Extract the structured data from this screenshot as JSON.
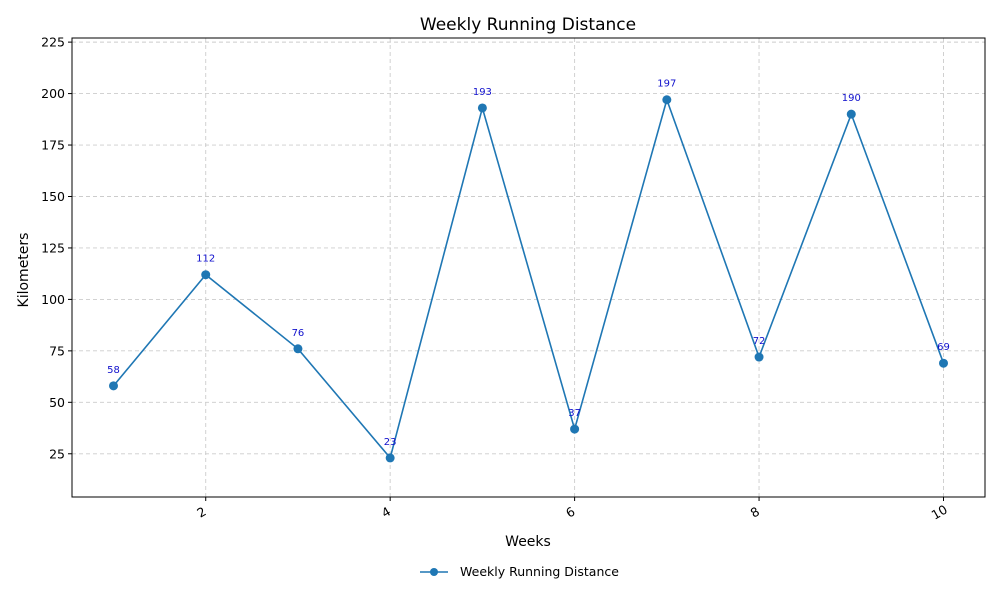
{
  "chart_data": {
    "type": "line",
    "title": "Weekly Running Distance",
    "xlabel": "Weeks",
    "ylabel": "Kilometers",
    "x": [
      1,
      2,
      3,
      4,
      5,
      6,
      7,
      8,
      9,
      10
    ],
    "series": [
      {
        "name": "Weekly Running Distance",
        "color": "#1f77b4",
        "values": [
          58,
          112,
          76,
          23,
          193,
          37,
          197,
          72,
          190,
          69
        ]
      }
    ],
    "data_labels": [
      "58",
      "112",
      "76",
      "23",
      "193",
      "37",
      "197",
      "72",
      "190",
      "69"
    ],
    "data_label_color": "#1010cc",
    "xlim": [
      0.55,
      10.45
    ],
    "ylim": [
      4,
      227
    ],
    "xticks": [
      2,
      4,
      6,
      8,
      10
    ],
    "xtick_labels": [
      "2",
      "4",
      "6",
      "8",
      "10"
    ],
    "xtick_rotation_deg": 30,
    "yticks": [
      25,
      50,
      75,
      100,
      125,
      150,
      175,
      200,
      225
    ],
    "ytick_labels": [
      "25",
      "50",
      "75",
      "100",
      "125",
      "150",
      "175",
      "200",
      "225"
    ],
    "grid": true,
    "legend_position": "bottom-center"
  }
}
